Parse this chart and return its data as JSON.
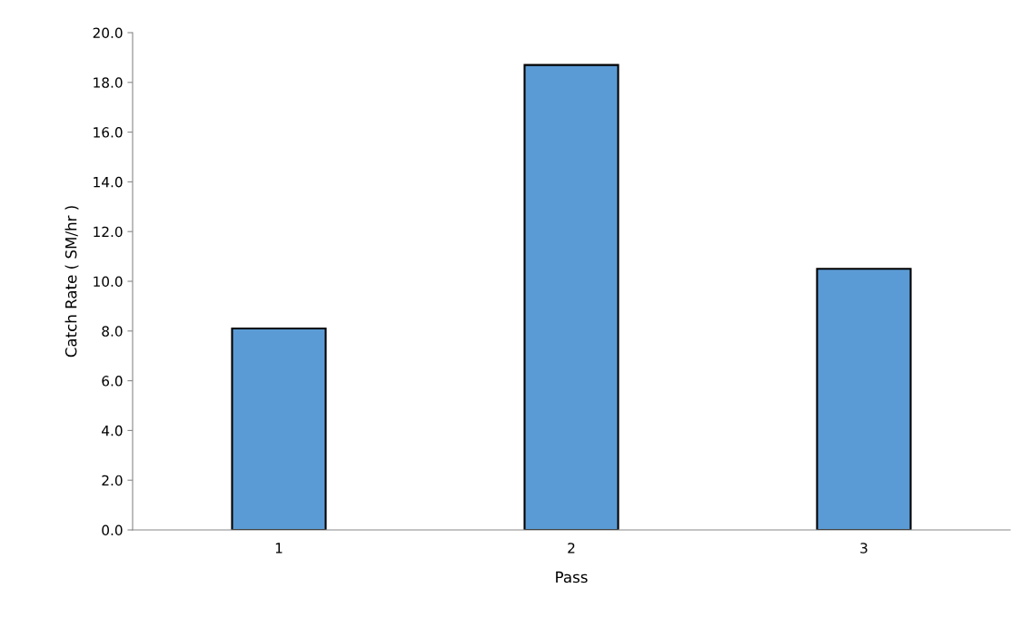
{
  "chart_data": {
    "type": "bar",
    "xlabel": "Pass",
    "ylabel": "Catch Rate ( SM/hr )",
    "categories": [
      "1",
      "2",
      "3"
    ],
    "series": [
      {
        "color": "#5b9bd5",
        "values": [
          8.1,
          18.7,
          10.5
        ]
      }
    ],
    "ylim": [
      0,
      20
    ],
    "yticks": [
      {
        "value": 0,
        "label": "0.0"
      },
      {
        "value": 2,
        "label": "2.0"
      },
      {
        "value": 4,
        "label": "4.0"
      },
      {
        "value": 6,
        "label": "6.0"
      },
      {
        "value": 8,
        "label": "8.0"
      },
      {
        "value": 10,
        "label": "10.0"
      },
      {
        "value": 12,
        "label": "12.0"
      },
      {
        "value": 14,
        "label": "14.0"
      },
      {
        "value": 16,
        "label": "16.0"
      },
      {
        "value": 18,
        "label": "18.0"
      },
      {
        "value": 20,
        "label": "20.0"
      }
    ],
    "grid": false,
    "legend": false
  }
}
